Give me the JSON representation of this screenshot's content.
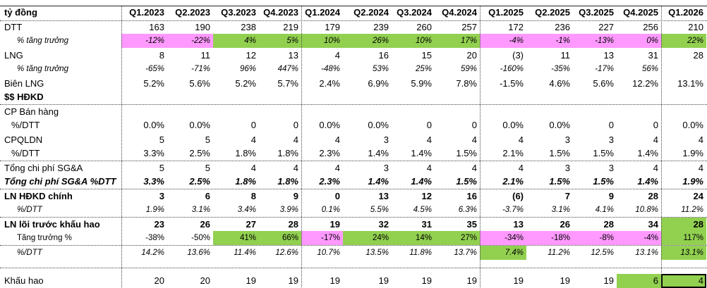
{
  "colors": {
    "pink": "#ff99ff",
    "green": "#92d050",
    "grid": "#444444"
  },
  "header": {
    "unit_label": "tỷ đồng",
    "quarters": [
      "Q1.2023",
      "Q2.2023",
      "Q3.2023",
      "Q4.2023",
      "Q1.2024",
      "Q2.2024",
      "Q3.2024",
      "Q4.2024",
      "Q1.2025",
      "Q2.2025",
      "Q3.2025",
      "Q4.2025",
      "Q1.2026"
    ]
  },
  "rows": [
    {
      "label": "DTT",
      "style": "normal",
      "values": [
        "163",
        "190",
        "238",
        "219",
        "179",
        "239",
        "260",
        "257",
        "172",
        "236",
        "227",
        "256",
        "210"
      ],
      "fills": []
    },
    {
      "label": "% tăng trưởng",
      "style": "small-italic",
      "values": [
        "-12%",
        "-22%",
        "4%",
        "5%",
        "10%",
        "26%",
        "10%",
        "17%",
        "-4%",
        "-1%",
        "-13%",
        "0%",
        "22%"
      ],
      "fills": [
        "pink",
        "pink",
        "green",
        "green",
        "green",
        "green",
        "green",
        "green",
        "pink",
        "pink",
        "pink",
        "pink",
        "green"
      ]
    },
    {
      "label": "LNG",
      "style": "normal",
      "values": [
        "8",
        "11",
        "12",
        "13",
        "4",
        "16",
        "15",
        "20",
        "(3)",
        "11",
        "13",
        "31",
        "28"
      ],
      "fills": []
    },
    {
      "label": "% tăng trưởng",
      "style": "small-italic",
      "values": [
        "-65%",
        "-71%",
        "96%",
        "447%",
        "-48%",
        "53%",
        "25%",
        "59%",
        "-160%",
        "-35%",
        "-17%",
        "56%",
        ""
      ],
      "fills": []
    },
    {
      "label": "Biên LNG",
      "style": "normal",
      "values": [
        "5.2%",
        "5.6%",
        "5.2%",
        "5.7%",
        "2.4%",
        "6.9%",
        "5.9%",
        "7.8%",
        "-1.5%",
        "4.6%",
        "5.6%",
        "12.2%",
        "13.1%"
      ],
      "fills": []
    },
    {
      "label": "$$ HĐKD",
      "style": "bold",
      "values": [
        "",
        "",
        "",
        "",
        "",
        "",
        "",
        "",
        "",
        "",
        "",
        "",
        ""
      ],
      "fills": []
    },
    {
      "label": "CP Bán hàng",
      "style": "normal",
      "values": [
        "",
        "",
        "",
        "",
        "",
        "",
        "",
        "",
        "",
        "",
        "",
        "",
        ""
      ],
      "fills": []
    },
    {
      "label": "%/DTT",
      "style": "indent2",
      "values": [
        "0.0%",
        "0.0%",
        "0",
        "0",
        "0.0%",
        "0.0%",
        "0",
        "0",
        "0.0%",
        "0.0%",
        "0",
        "0",
        "0.0%"
      ],
      "fills": []
    },
    {
      "label": "CPQLDN",
      "style": "normal",
      "values": [
        "5",
        "5",
        "4",
        "4",
        "4",
        "3",
        "4",
        "4",
        "4",
        "3",
        "3",
        "4",
        "4"
      ],
      "fills": []
    },
    {
      "label": "%/DTT",
      "style": "indent2",
      "values": [
        "3.3%",
        "2.5%",
        "1.8%",
        "1.8%",
        "2.3%",
        "1.4%",
        "1.4%",
        "1.5%",
        "2.1%",
        "1.5%",
        "1.5%",
        "1.4%",
        "1.9%"
      ],
      "fills": []
    },
    {
      "label": "Tổng chi phí SG&A",
      "style": "normal",
      "values": [
        "5",
        "5",
        "4",
        "4",
        "4",
        "3",
        "4",
        "4",
        "4",
        "3",
        "3",
        "4",
        "4"
      ],
      "fills": []
    },
    {
      "label": "Tổng chi phí SG&A %DTT",
      "style": "bold-italic",
      "values": [
        "3.3%",
        "2.5%",
        "1.8%",
        "1.8%",
        "2.3%",
        "1.4%",
        "1.4%",
        "1.5%",
        "2.1%",
        "1.5%",
        "1.5%",
        "1.4%",
        "1.9%"
      ],
      "fills": []
    },
    {
      "label": "LN HĐKD chính",
      "style": "bold",
      "values": [
        "3",
        "6",
        "8",
        "9",
        "0",
        "13",
        "12",
        "16",
        "(6)",
        "7",
        "9",
        "28",
        "24"
      ],
      "fills": []
    },
    {
      "label": "%/DTT",
      "style": "small-italic",
      "values": [
        "1.9%",
        "3.1%",
        "3.4%",
        "3.9%",
        "0.1%",
        "5.5%",
        "4.5%",
        "6.3%",
        "-3.7%",
        "3.1%",
        "4.1%",
        "10.8%",
        "11.2%"
      ],
      "fills": []
    },
    {
      "label": "LN lõi trước khấu hao",
      "style": "bold",
      "values": [
        "23",
        "26",
        "27",
        "28",
        "19",
        "32",
        "31",
        "35",
        "13",
        "26",
        "28",
        "34",
        "28"
      ],
      "fills": [
        "",
        "",
        "",
        "",
        "",
        "",
        "",
        "",
        "",
        "",
        "",
        "",
        "green"
      ]
    },
    {
      "label": "Tăng trưởng %",
      "style": "small",
      "values": [
        "-38%",
        "-50%",
        "41%",
        "66%",
        "-17%",
        "24%",
        "14%",
        "27%",
        "-34%",
        "-18%",
        "-8%",
        "-4%",
        "117%"
      ],
      "fills": [
        "",
        "",
        "green",
        "green",
        "pink",
        "green",
        "green",
        "green",
        "pink",
        "pink",
        "pink",
        "pink",
        "green"
      ]
    },
    {
      "label": "%/DTT",
      "style": "small-italic",
      "values": [
        "14.2%",
        "13.6%",
        "11.4%",
        "12.6%",
        "10.7%",
        "13.5%",
        "11.8%",
        "13.7%",
        "7.4%",
        "11.2%",
        "12.5%",
        "13.1%",
        "13.1%"
      ],
      "fills": [
        "",
        "",
        "",
        "",
        "",
        "",
        "",
        "",
        "green",
        "",
        "",
        "",
        "green"
      ]
    },
    {
      "label": "",
      "style": "normal",
      "values": [
        "",
        "",
        "",
        "",
        "",
        "",
        "",
        "",
        "",
        "",
        "",
        "",
        ""
      ],
      "fills": []
    },
    {
      "label": "Khấu hao",
      "style": "normal",
      "values": [
        "20",
        "20",
        "19",
        "19",
        "19",
        "19",
        "19",
        "19",
        "19",
        "19",
        "19",
        "6",
        "4"
      ],
      "fills": [
        "",
        "",
        "",
        "",
        "",
        "",
        "",
        "",
        "",
        "",
        "",
        "green",
        "green"
      ]
    }
  ]
}
